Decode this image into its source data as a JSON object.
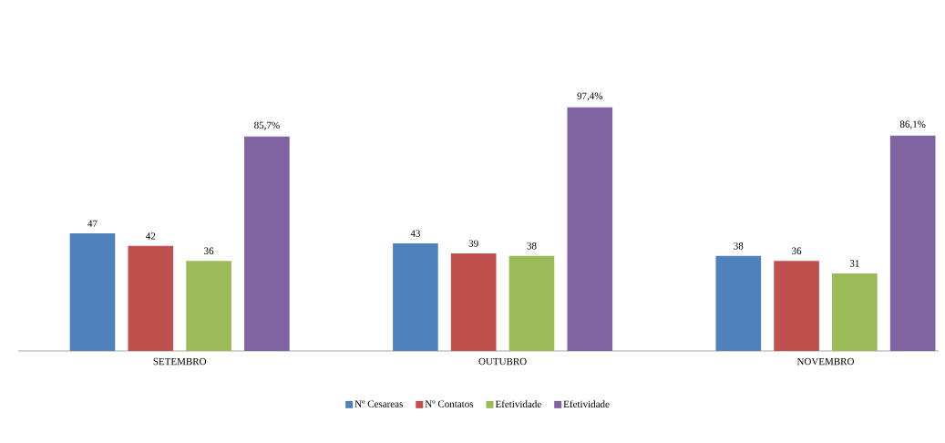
{
  "chart_data": {
    "type": "bar",
    "categories": [
      "SETEMBRO",
      "OUTUBRO",
      "NOVEMBRO"
    ],
    "legend": "bottom",
    "series": [
      {
        "name": "Nº Cesareas",
        "color": "#4f81bd",
        "values": [
          47,
          43,
          38
        ],
        "value_labels": [
          "47",
          "43",
          "38"
        ]
      },
      {
        "name": "Nº Contatos",
        "color": "#c0504d",
        "values": [
          42,
          39,
          36
        ],
        "value_labels": [
          "42",
          "39",
          "36"
        ]
      },
      {
        "name": "Efetividade",
        "color": "#9bbb59",
        "values": [
          36,
          38,
          31
        ],
        "value_labels": [
          "36",
          "38",
          "31"
        ]
      },
      {
        "name": "Efetividade",
        "color": "#8064a2",
        "values": [
          85.7,
          97.4,
          86.1
        ],
        "value_labels": [
          "85,7%",
          "97,4%",
          "86,1%"
        ]
      }
    ]
  }
}
